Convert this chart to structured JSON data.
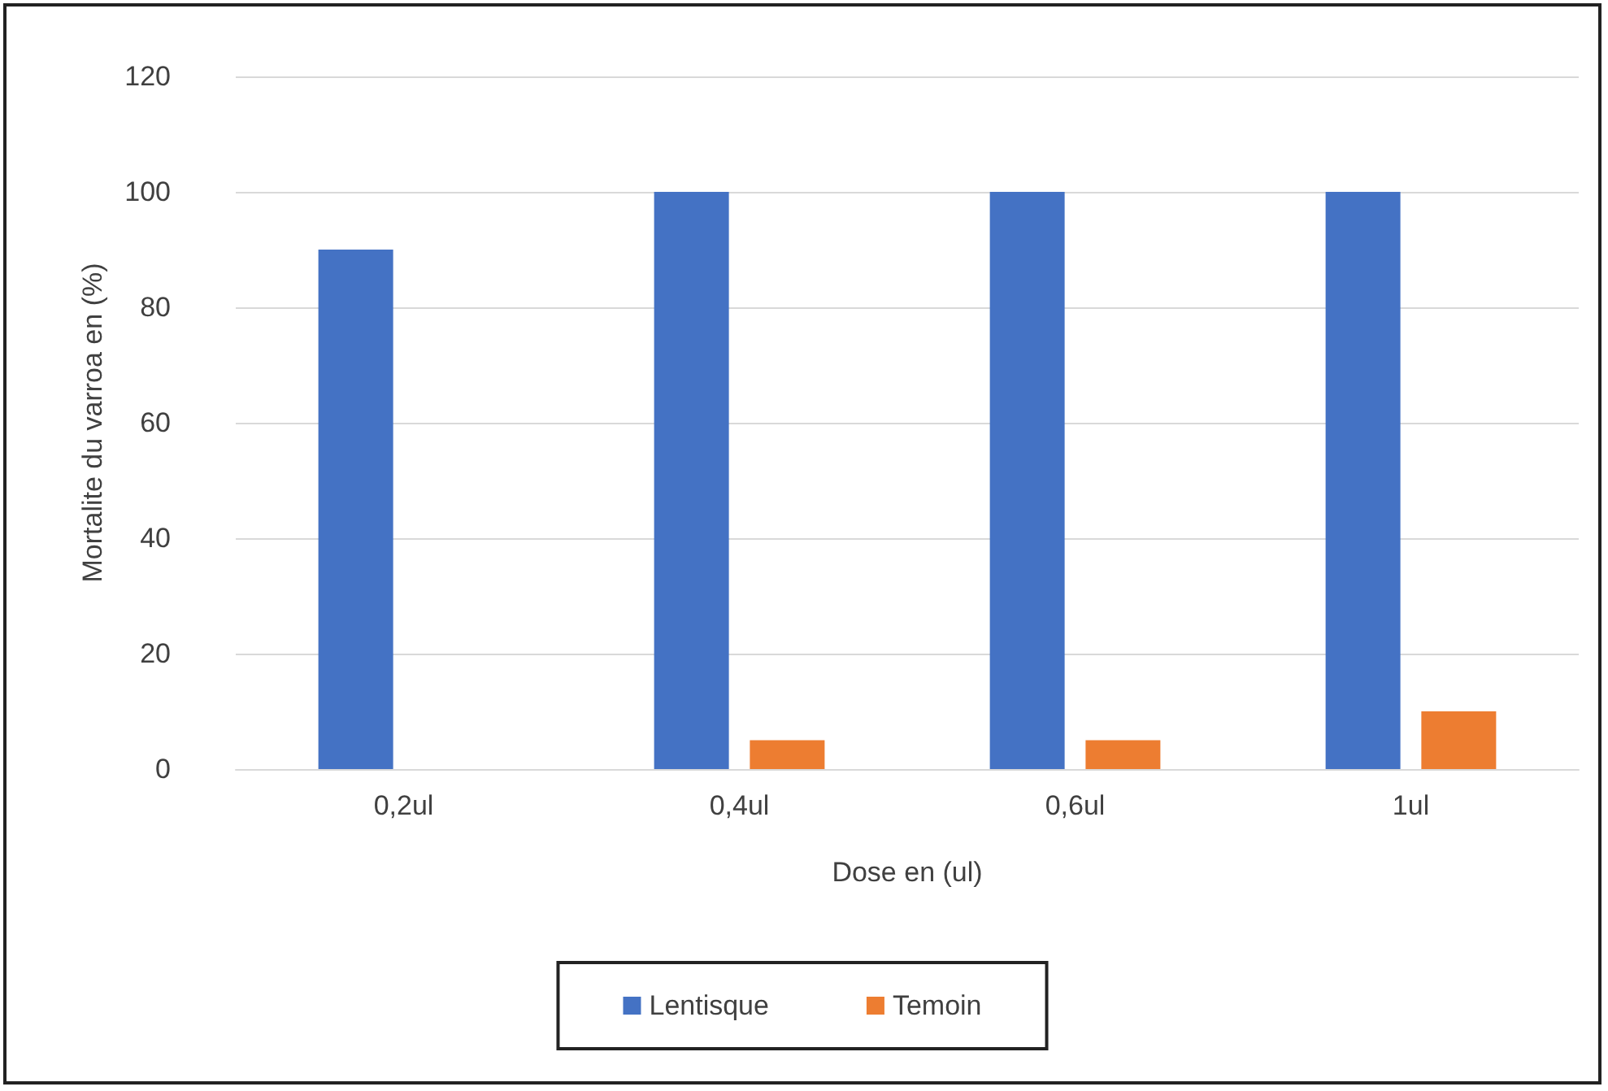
{
  "chart_data": {
    "type": "bar",
    "xlabel": "Dose en (ul)",
    "ylabel": "Mortalite du varroa en (%)",
    "categories": [
      "0,2ul",
      "0,4ul",
      "0,6ul",
      "1ul"
    ],
    "series": [
      {
        "name": "Lentisque",
        "color": "#4472c4",
        "values": [
          90,
          100,
          100,
          100
        ]
      },
      {
        "name": "Temoin",
        "color": "#ed7d31",
        "values": [
          0,
          5,
          5,
          10
        ]
      }
    ],
    "ylim": [
      0,
      120
    ],
    "yticks": [
      0,
      20,
      40,
      60,
      80,
      100,
      120
    ],
    "grid": "y",
    "legend": "bottom"
  }
}
